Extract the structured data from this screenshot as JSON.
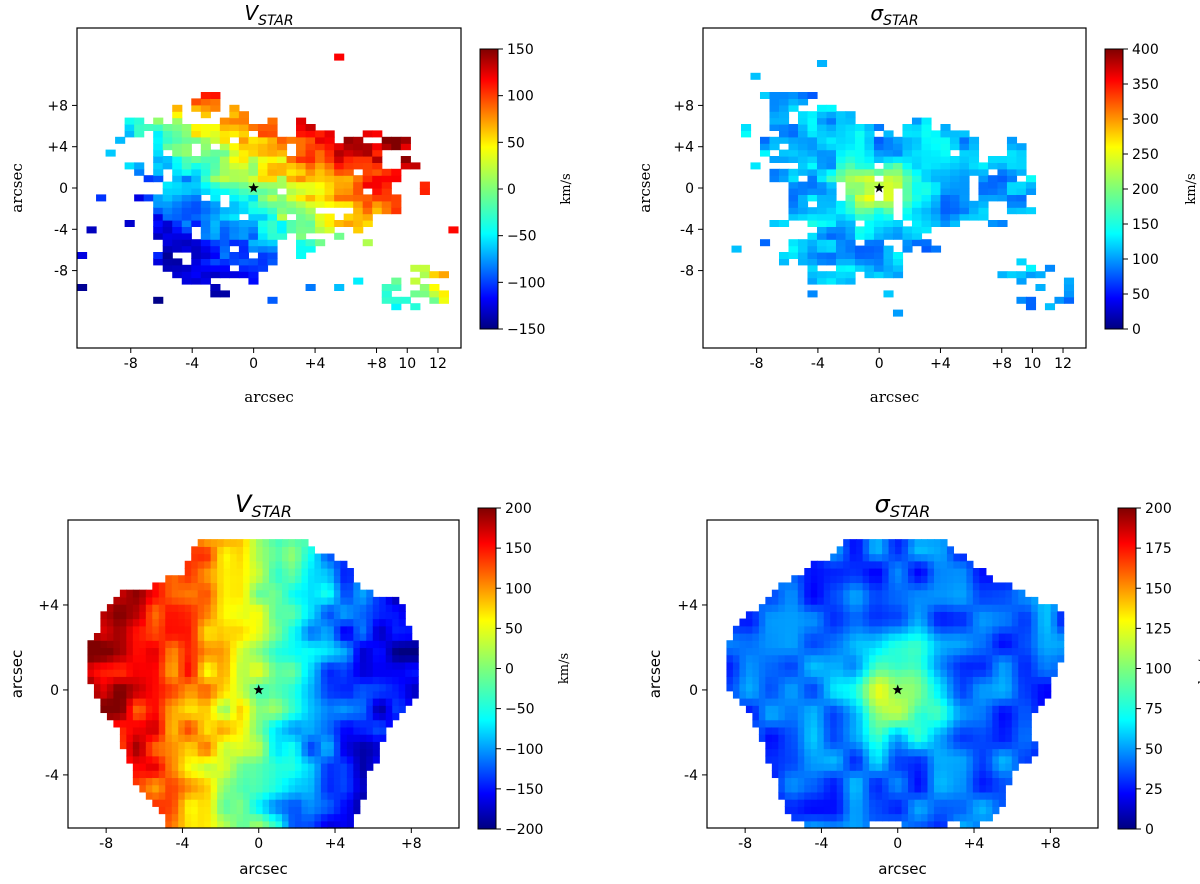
{
  "chart_data": [
    {
      "type": "heatmap",
      "title": "V_STAR",
      "title_main": "V",
      "title_sub": "STAR",
      "xlabel": "arcsec",
      "ylabel": "arcsec",
      "xlim": [
        -11.5,
        13.5
      ],
      "ylim": [
        -15.5,
        15.5
      ],
      "xticks": [
        -8,
        -4,
        0,
        4,
        8,
        10,
        12
      ],
      "xticklabels": [
        "-8",
        "-4",
        "0",
        "+4",
        "+8",
        "10",
        "12"
      ],
      "yticks": [
        8,
        4,
        0,
        -4,
        -8
      ],
      "yticklabels": [
        "+8",
        "+4",
        "0",
        "-4",
        "-8"
      ],
      "colorbar": {
        "min": -150,
        "max": 150,
        "ticks": [
          150,
          100,
          50,
          0,
          -50,
          -100,
          -150
        ],
        "ticklabels": [
          "150",
          "100",
          "50",
          "0",
          "−50",
          "−100",
          "−150"
        ],
        "label": "km/s"
      },
      "pattern": "velocity",
      "center_marker": "black-star",
      "colormap": "jet"
    },
    {
      "type": "heatmap",
      "title": "σ_STAR",
      "title_main": "σ",
      "title_sub": "STAR",
      "xlabel": "arcsec",
      "ylabel": "arcsec",
      "xlim": [
        -11.5,
        13.5
      ],
      "ylim": [
        -15.5,
        15.5
      ],
      "xticks": [
        -8,
        -4,
        0,
        4,
        8,
        10,
        12
      ],
      "xticklabels": [
        "-8",
        "-4",
        "0",
        "+4",
        "+8",
        "10",
        "12"
      ],
      "yticks": [
        8,
        4,
        0,
        -4,
        -8
      ],
      "yticklabels": [
        "+8",
        "+4",
        "0",
        "-4",
        "-8"
      ],
      "colorbar": {
        "min": 0,
        "max": 400,
        "ticks": [
          400,
          350,
          300,
          250,
          200,
          150,
          100,
          50,
          0
        ],
        "ticklabels": [
          "400",
          "350",
          "300",
          "250",
          "200",
          "150",
          "100",
          "50",
          "0"
        ],
        "label": "km/s"
      },
      "pattern": "dispersion",
      "center_marker": "black-star",
      "colormap": "jet"
    },
    {
      "type": "heatmap",
      "title": "V_STAR",
      "title_main": "V",
      "title_sub": "STAR",
      "xlabel": "arcsec",
      "ylabel": "arcsec",
      "xlim": [
        -10,
        10.5
      ],
      "ylim": [
        -6.5,
        8
      ],
      "xticks": [
        -8,
        -4,
        0,
        4,
        8
      ],
      "xticklabels": [
        "-8",
        "-4",
        "0",
        "+4",
        "+8"
      ],
      "yticks": [
        4,
        0,
        -4
      ],
      "yticklabels": [
        "+4",
        "0",
        "-4"
      ],
      "colorbar": {
        "min": -200,
        "max": 200,
        "ticks": [
          200,
          150,
          100,
          50,
          0,
          -50,
          -100,
          -150,
          -200
        ],
        "ticklabels": [
          "200",
          "150",
          "100",
          "50",
          "0",
          "−50",
          "−100",
          "−150",
          "−200"
        ],
        "label": "km/s"
      },
      "pattern": "velocity",
      "center_marker": "black-star",
      "colormap": "jet"
    },
    {
      "type": "heatmap",
      "title": "σ_STAR",
      "title_main": "σ",
      "title_sub": "STAR",
      "xlabel": "arcsec",
      "ylabel": "arcsec",
      "xlim": [
        -10,
        10.5
      ],
      "ylim": [
        -6.5,
        8
      ],
      "xticks": [
        -8,
        -4,
        0,
        4,
        8
      ],
      "xticklabels": [
        "-8",
        "-4",
        "0",
        "+4",
        "+8"
      ],
      "yticks": [
        4,
        0,
        -4
      ],
      "yticklabels": [
        "+4",
        "0",
        "-4"
      ],
      "colorbar": {
        "min": 0,
        "max": 200,
        "ticks": [
          200,
          175,
          150,
          125,
          100,
          75,
          50,
          25,
          0
        ],
        "ticklabels": [
          "200",
          "175",
          "150",
          "125",
          "100",
          "75",
          "50",
          "25",
          "0"
        ],
        "label": "km/s"
      },
      "pattern": "dispersion",
      "center_marker": "black-star",
      "colormap": "jet"
    }
  ]
}
